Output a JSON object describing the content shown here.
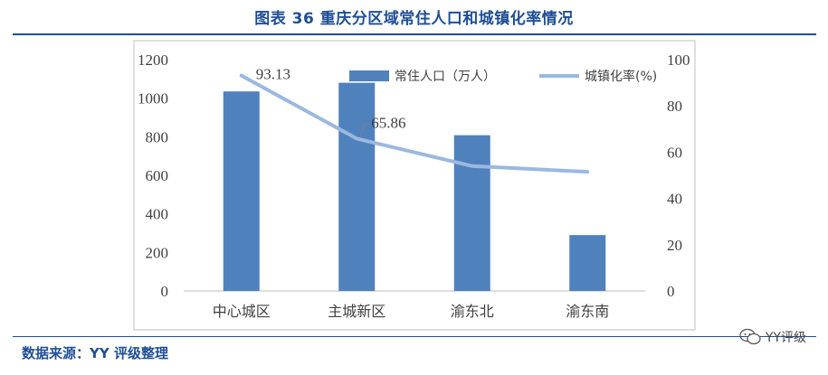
{
  "header": {
    "title": "图表 36 重庆分区域常住人口和城镇化率情况"
  },
  "footer": {
    "source": "数据来源：YY 评级整理",
    "watermark": "YY评级"
  },
  "colors": {
    "title": "#1f4e96",
    "bar": "#4f81bd",
    "line": "#9bb8e0",
    "axis": "#404040"
  },
  "chart_data": {
    "type": "bar",
    "categories": [
      "中心城区",
      "主城新区",
      "渝东北",
      "渝东南"
    ],
    "series": [
      {
        "name": "常住人口（万人）",
        "type": "bar",
        "axis": "left",
        "values": [
          1035,
          1080,
          808,
          290
        ]
      },
      {
        "name": "城镇化率(%)",
        "type": "line",
        "axis": "right",
        "values": [
          93.13,
          65.86,
          54,
          51.5
        ]
      }
    ],
    "data_labels": [
      {
        "series": 1,
        "index": 0,
        "text": "93.13"
      },
      {
        "series": 1,
        "index": 1,
        "text": "65.86"
      }
    ],
    "y_left": {
      "min": 0,
      "max": 1200,
      "ticks": [
        0,
        200,
        400,
        600,
        800,
        1000,
        1200
      ]
    },
    "y_right": {
      "min": 0,
      "max": 100,
      "ticks": [
        0,
        20,
        40,
        60,
        80,
        100
      ]
    },
    "legend": {
      "position": "top-right",
      "labels": [
        "常住人口（万人）",
        "城镇化率(%)"
      ]
    },
    "grid": false
  }
}
